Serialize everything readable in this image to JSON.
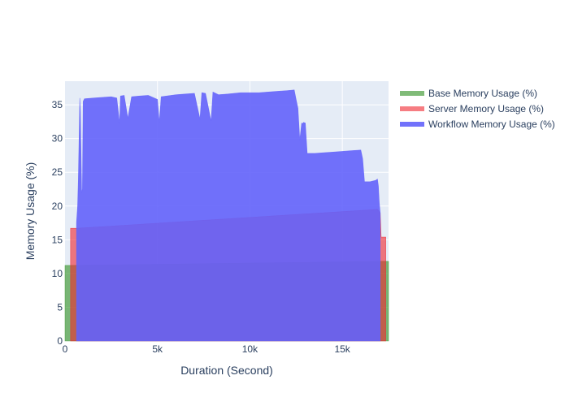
{
  "chart_data": {
    "type": "area",
    "title": "",
    "xlabel": "Duration (Second)",
    "ylabel": "Memory Usage (%)",
    "xlim": [
      0,
      17500
    ],
    "ylim": [
      0,
      38.5
    ],
    "x_ticks": [
      0,
      5000,
      10000,
      15000
    ],
    "x_tick_labels": [
      "0",
      "5k",
      "10k",
      "15k"
    ],
    "y_ticks": [
      0,
      5,
      10,
      15,
      20,
      25,
      30,
      35
    ],
    "y_tick_labels": [
      "0",
      "5",
      "10",
      "15",
      "20",
      "25",
      "30",
      "35"
    ],
    "grid": true,
    "legend_position": "top-right",
    "plot_background": "#e5ecf6",
    "series": [
      {
        "name": "Base Memory Usage (%)",
        "color": "#4a9e3f",
        "opacity": 0.7,
        "points": [
          [
            0,
            11.2
          ],
          [
            300,
            11.2
          ],
          [
            17150,
            11.8
          ],
          [
            17500,
            11.8
          ]
        ]
      },
      {
        "name": "Server Memory Usage (%)",
        "color": "#f0262f",
        "opacity": 0.6,
        "points": [
          [
            300,
            16.7
          ],
          [
            620,
            16.7
          ],
          [
            16900,
            19.5
          ],
          [
            17050,
            19.0
          ],
          [
            17100,
            15.4
          ],
          [
            17350,
            15.4
          ]
        ]
      },
      {
        "name": "Workflow Memory Usage (%)",
        "color": "#6363fb",
        "opacity": 0.9,
        "points": [
          [
            620,
            17.5
          ],
          [
            680,
            20.0
          ],
          [
            720,
            24.0
          ],
          [
            760,
            30.0
          ],
          [
            800,
            36.0
          ],
          [
            830,
            34.0
          ],
          [
            860,
            29.0
          ],
          [
            900,
            22.0
          ],
          [
            940,
            22.5
          ],
          [
            980,
            35.5
          ],
          [
            1050,
            35.9
          ],
          [
            1500,
            36.0
          ],
          [
            2000,
            36.1
          ],
          [
            2500,
            36.2
          ],
          [
            2800,
            36.0
          ],
          [
            2950,
            32.3
          ],
          [
            3000,
            36.3
          ],
          [
            3200,
            36.4
          ],
          [
            3400,
            33.0
          ],
          [
            3600,
            36.2
          ],
          [
            4000,
            36.3
          ],
          [
            4500,
            36.4
          ],
          [
            5000,
            35.8
          ],
          [
            5100,
            32.4
          ],
          [
            5200,
            36.2
          ],
          [
            6000,
            36.5
          ],
          [
            6500,
            36.6
          ],
          [
            7000,
            36.7
          ],
          [
            7300,
            32.9
          ],
          [
            7400,
            36.8
          ],
          [
            7600,
            36.7
          ],
          [
            7900,
            32.6
          ],
          [
            8000,
            36.9
          ],
          [
            8300,
            36.5
          ],
          [
            8800,
            36.6
          ],
          [
            9500,
            36.8
          ],
          [
            10000,
            36.8
          ],
          [
            10500,
            36.8
          ],
          [
            11000,
            36.9
          ],
          [
            11500,
            37.0
          ],
          [
            12000,
            37.1
          ],
          [
            12400,
            37.2
          ],
          [
            12500,
            35.8
          ],
          [
            12600,
            34.5
          ],
          [
            12700,
            29.8
          ],
          [
            12800,
            32.3
          ],
          [
            12850,
            32.2
          ],
          [
            12900,
            32.4
          ],
          [
            13000,
            32.3
          ],
          [
            13100,
            27.8
          ],
          [
            13500,
            27.8
          ],
          [
            14000,
            27.9
          ],
          [
            14500,
            28.0
          ],
          [
            15000,
            28.1
          ],
          [
            15500,
            28.2
          ],
          [
            16000,
            28.3
          ],
          [
            16100,
            27.0
          ],
          [
            16200,
            23.6
          ],
          [
            16500,
            23.6
          ],
          [
            16800,
            23.8
          ],
          [
            16900,
            24.0
          ],
          [
            16950,
            23.0
          ],
          [
            17000,
            20.5
          ],
          [
            17050,
            19.0
          ]
        ]
      }
    ]
  }
}
